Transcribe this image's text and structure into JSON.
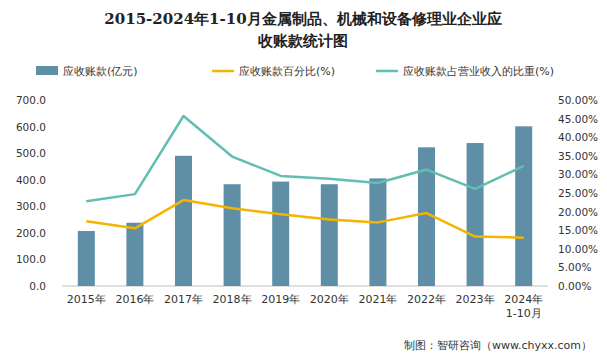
{
  "chart_data": {
    "type": "bar",
    "title": [
      "2015-2024年1-10月金属制品、机械和设备修理业企业应",
      "收账款统计图"
    ],
    "categories": [
      "2015年",
      "2016年",
      "2017年",
      "2018年",
      "2019年",
      "2020年",
      "2021年",
      "2022年",
      "2023年",
      "2024年\n1-10月"
    ],
    "series": [
      {
        "name": "应收账款(亿元)",
        "type": "bar",
        "color": "#5f8fa7",
        "values": [
          207,
          238,
          490,
          383,
          393,
          383,
          405,
          522,
          538,
          601
        ]
      },
      {
        "name": "应收账款百分比(%)",
        "type": "line",
        "axis": "y2",
        "color": "#f5b400",
        "values": [
          17.4,
          15.5,
          23.1,
          20.9,
          19.3,
          17.9,
          17.1,
          19.6,
          13.3,
          13.0
        ]
      },
      {
        "name": "应收账款占营业收入的比重(%)",
        "type": "line",
        "axis": "y2",
        "color": "#62bdb3",
        "values": [
          22.8,
          24.7,
          45.7,
          34.8,
          29.6,
          28.8,
          27.7,
          31.3,
          26.1,
          32.3
        ]
      }
    ],
    "ylim": [
      0,
      700
    ],
    "yticks": [
      {
        "value": 0,
        "label": "0.0"
      },
      {
        "value": 100,
        "label": "100.0"
      },
      {
        "value": 200,
        "label": "200.0"
      },
      {
        "value": 300,
        "label": "300.0"
      },
      {
        "value": 400,
        "label": "400.0"
      },
      {
        "value": 500,
        "label": "500.0"
      },
      {
        "value": 600,
        "label": "600.0"
      },
      {
        "value": 700,
        "label": "700.0"
      }
    ],
    "y2lim": [
      0,
      50
    ],
    "y2ticks": [
      {
        "value": 0,
        "label": "0.00%"
      },
      {
        "value": 5,
        "label": "5.00%"
      },
      {
        "value": 10,
        "label": "10.00%"
      },
      {
        "value": 15,
        "label": "15.00%"
      },
      {
        "value": 20,
        "label": "20.00%"
      },
      {
        "value": 25,
        "label": "25.00%"
      },
      {
        "value": 30,
        "label": "30.00%"
      },
      {
        "value": 35,
        "label": "35.00%"
      },
      {
        "value": 40,
        "label": "40.00%"
      },
      {
        "value": 45,
        "label": "45.00%"
      },
      {
        "value": 50,
        "label": "50.00%"
      }
    ],
    "grid": false,
    "legend": "top",
    "annotations": [
      "制图：智研咨询（www.chyxx.com）"
    ]
  }
}
